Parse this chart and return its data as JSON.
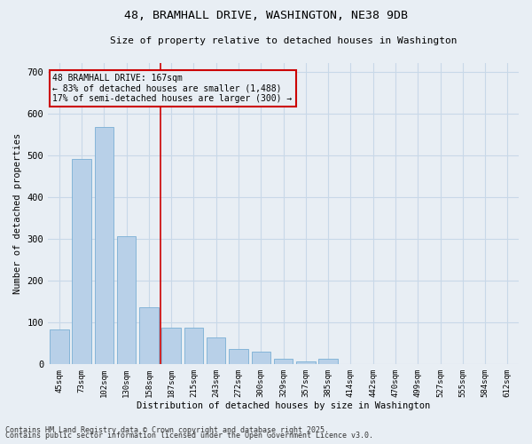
{
  "title_line1": "48, BRAMHALL DRIVE, WASHINGTON, NE38 9DB",
  "title_line2": "Size of property relative to detached houses in Washington",
  "xlabel": "Distribution of detached houses by size in Washington",
  "ylabel": "Number of detached properties",
  "categories": [
    "45sqm",
    "73sqm",
    "102sqm",
    "130sqm",
    "158sqm",
    "187sqm",
    "215sqm",
    "243sqm",
    "272sqm",
    "300sqm",
    "329sqm",
    "357sqm",
    "385sqm",
    "414sqm",
    "442sqm",
    "470sqm",
    "499sqm",
    "527sqm",
    "555sqm",
    "584sqm",
    "612sqm"
  ],
  "values": [
    83,
    490,
    567,
    305,
    135,
    87,
    87,
    63,
    35,
    30,
    12,
    7,
    12,
    0,
    0,
    0,
    0,
    0,
    0,
    0,
    0
  ],
  "bar_color": "#b8d0e8",
  "bar_edge_color": "#7aafd4",
  "vline_x": 4.5,
  "vline_color": "#cc0000",
  "annotation_text": "48 BRAMHALL DRIVE: 167sqm\n← 83% of detached houses are smaller (1,488)\n17% of semi-detached houses are larger (300) →",
  "annotation_box_color": "#cc0000",
  "ylim": [
    0,
    720
  ],
  "yticks": [
    0,
    100,
    200,
    300,
    400,
    500,
    600,
    700
  ],
  "grid_color": "#c8d8e8",
  "bg_color": "#e8eef4",
  "footer_line1": "Contains HM Land Registry data © Crown copyright and database right 2025.",
  "footer_line2": "Contains public sector information licensed under the Open Government Licence v3.0."
}
